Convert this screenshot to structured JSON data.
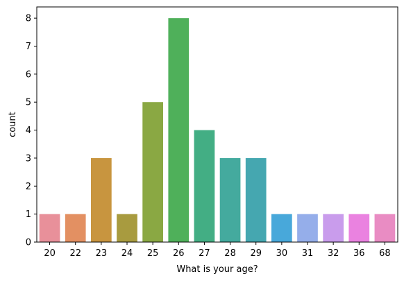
{
  "chart_data": {
    "type": "bar",
    "title": "",
    "xlabel": "What is your age?",
    "ylabel": "count",
    "categories": [
      "20",
      "22",
      "23",
      "24",
      "25",
      "26",
      "27",
      "28",
      "29",
      "30",
      "31",
      "32",
      "36",
      "68"
    ],
    "values": [
      1,
      1,
      3,
      1,
      5,
      8,
      4,
      3,
      3,
      1,
      1,
      1,
      1,
      1
    ],
    "colors": [
      "#e8909a",
      "#e39062",
      "#c8953f",
      "#a89b3f",
      "#8aa843",
      "#4fb05a",
      "#43ae84",
      "#44aa9e",
      "#45a7b0",
      "#48a8da",
      "#95aeea",
      "#c99cec",
      "#ea82e0",
      "#e98cc3"
    ],
    "ylim": [
      0,
      8.4
    ],
    "yticks": [
      0,
      1,
      2,
      3,
      4,
      5,
      6,
      7,
      8
    ],
    "grid": false,
    "legend": "none"
  }
}
